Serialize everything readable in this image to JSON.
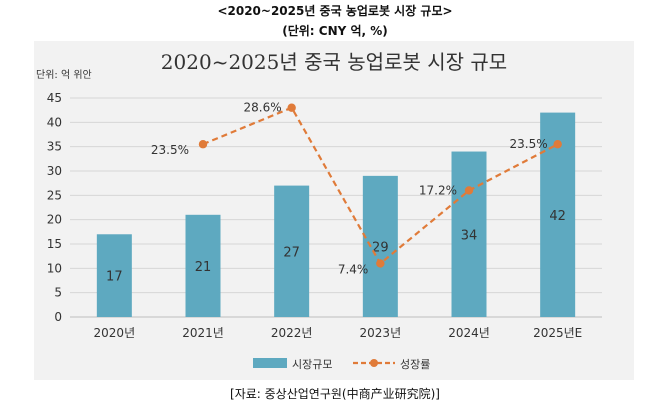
{
  "header": {
    "title": "<2020~2025년 중국 농업로봇 시장 규모>",
    "unit": "(단위: CNY 억, %)"
  },
  "source": "[자료: 중상산업연구원(中商产业研究院)]",
  "colors": {
    "bar": "#5ea9c0",
    "line": "#e07b39",
    "panel": "#f2f2f2",
    "grid": "#d6d6d6"
  },
  "chart_data": {
    "type": "bar",
    "title": "2020~2025년 중국 농업로봇 시장 규모",
    "unit_label": "단위: 억 위안",
    "categories": [
      "2020년",
      "2021년",
      "2022년",
      "2023년",
      "2024년",
      "2025년E"
    ],
    "ylim": [
      0,
      45
    ],
    "yticks": [
      0,
      5,
      10,
      15,
      20,
      25,
      30,
      35,
      40,
      45
    ],
    "grid": true,
    "legend_position": "bottom",
    "series": [
      {
        "name": "시장규모",
        "type": "bar",
        "values": [
          17,
          21,
          27,
          29,
          34,
          42
        ],
        "labels": [
          "17",
          "21",
          "27",
          "29",
          "34",
          "42"
        ]
      },
      {
        "name": "성장률",
        "type": "line",
        "style": "dashed",
        "unit": "%",
        "values": [
          null,
          23.5,
          28.6,
          7.4,
          17.2,
          23.5
        ],
        "plot_y": [
          null,
          35.5,
          43,
          11,
          26,
          35.5
        ],
        "labels": [
          "",
          "23.5%",
          "28.6%",
          "7.4%",
          "17.2%",
          "23.5%"
        ]
      }
    ]
  }
}
